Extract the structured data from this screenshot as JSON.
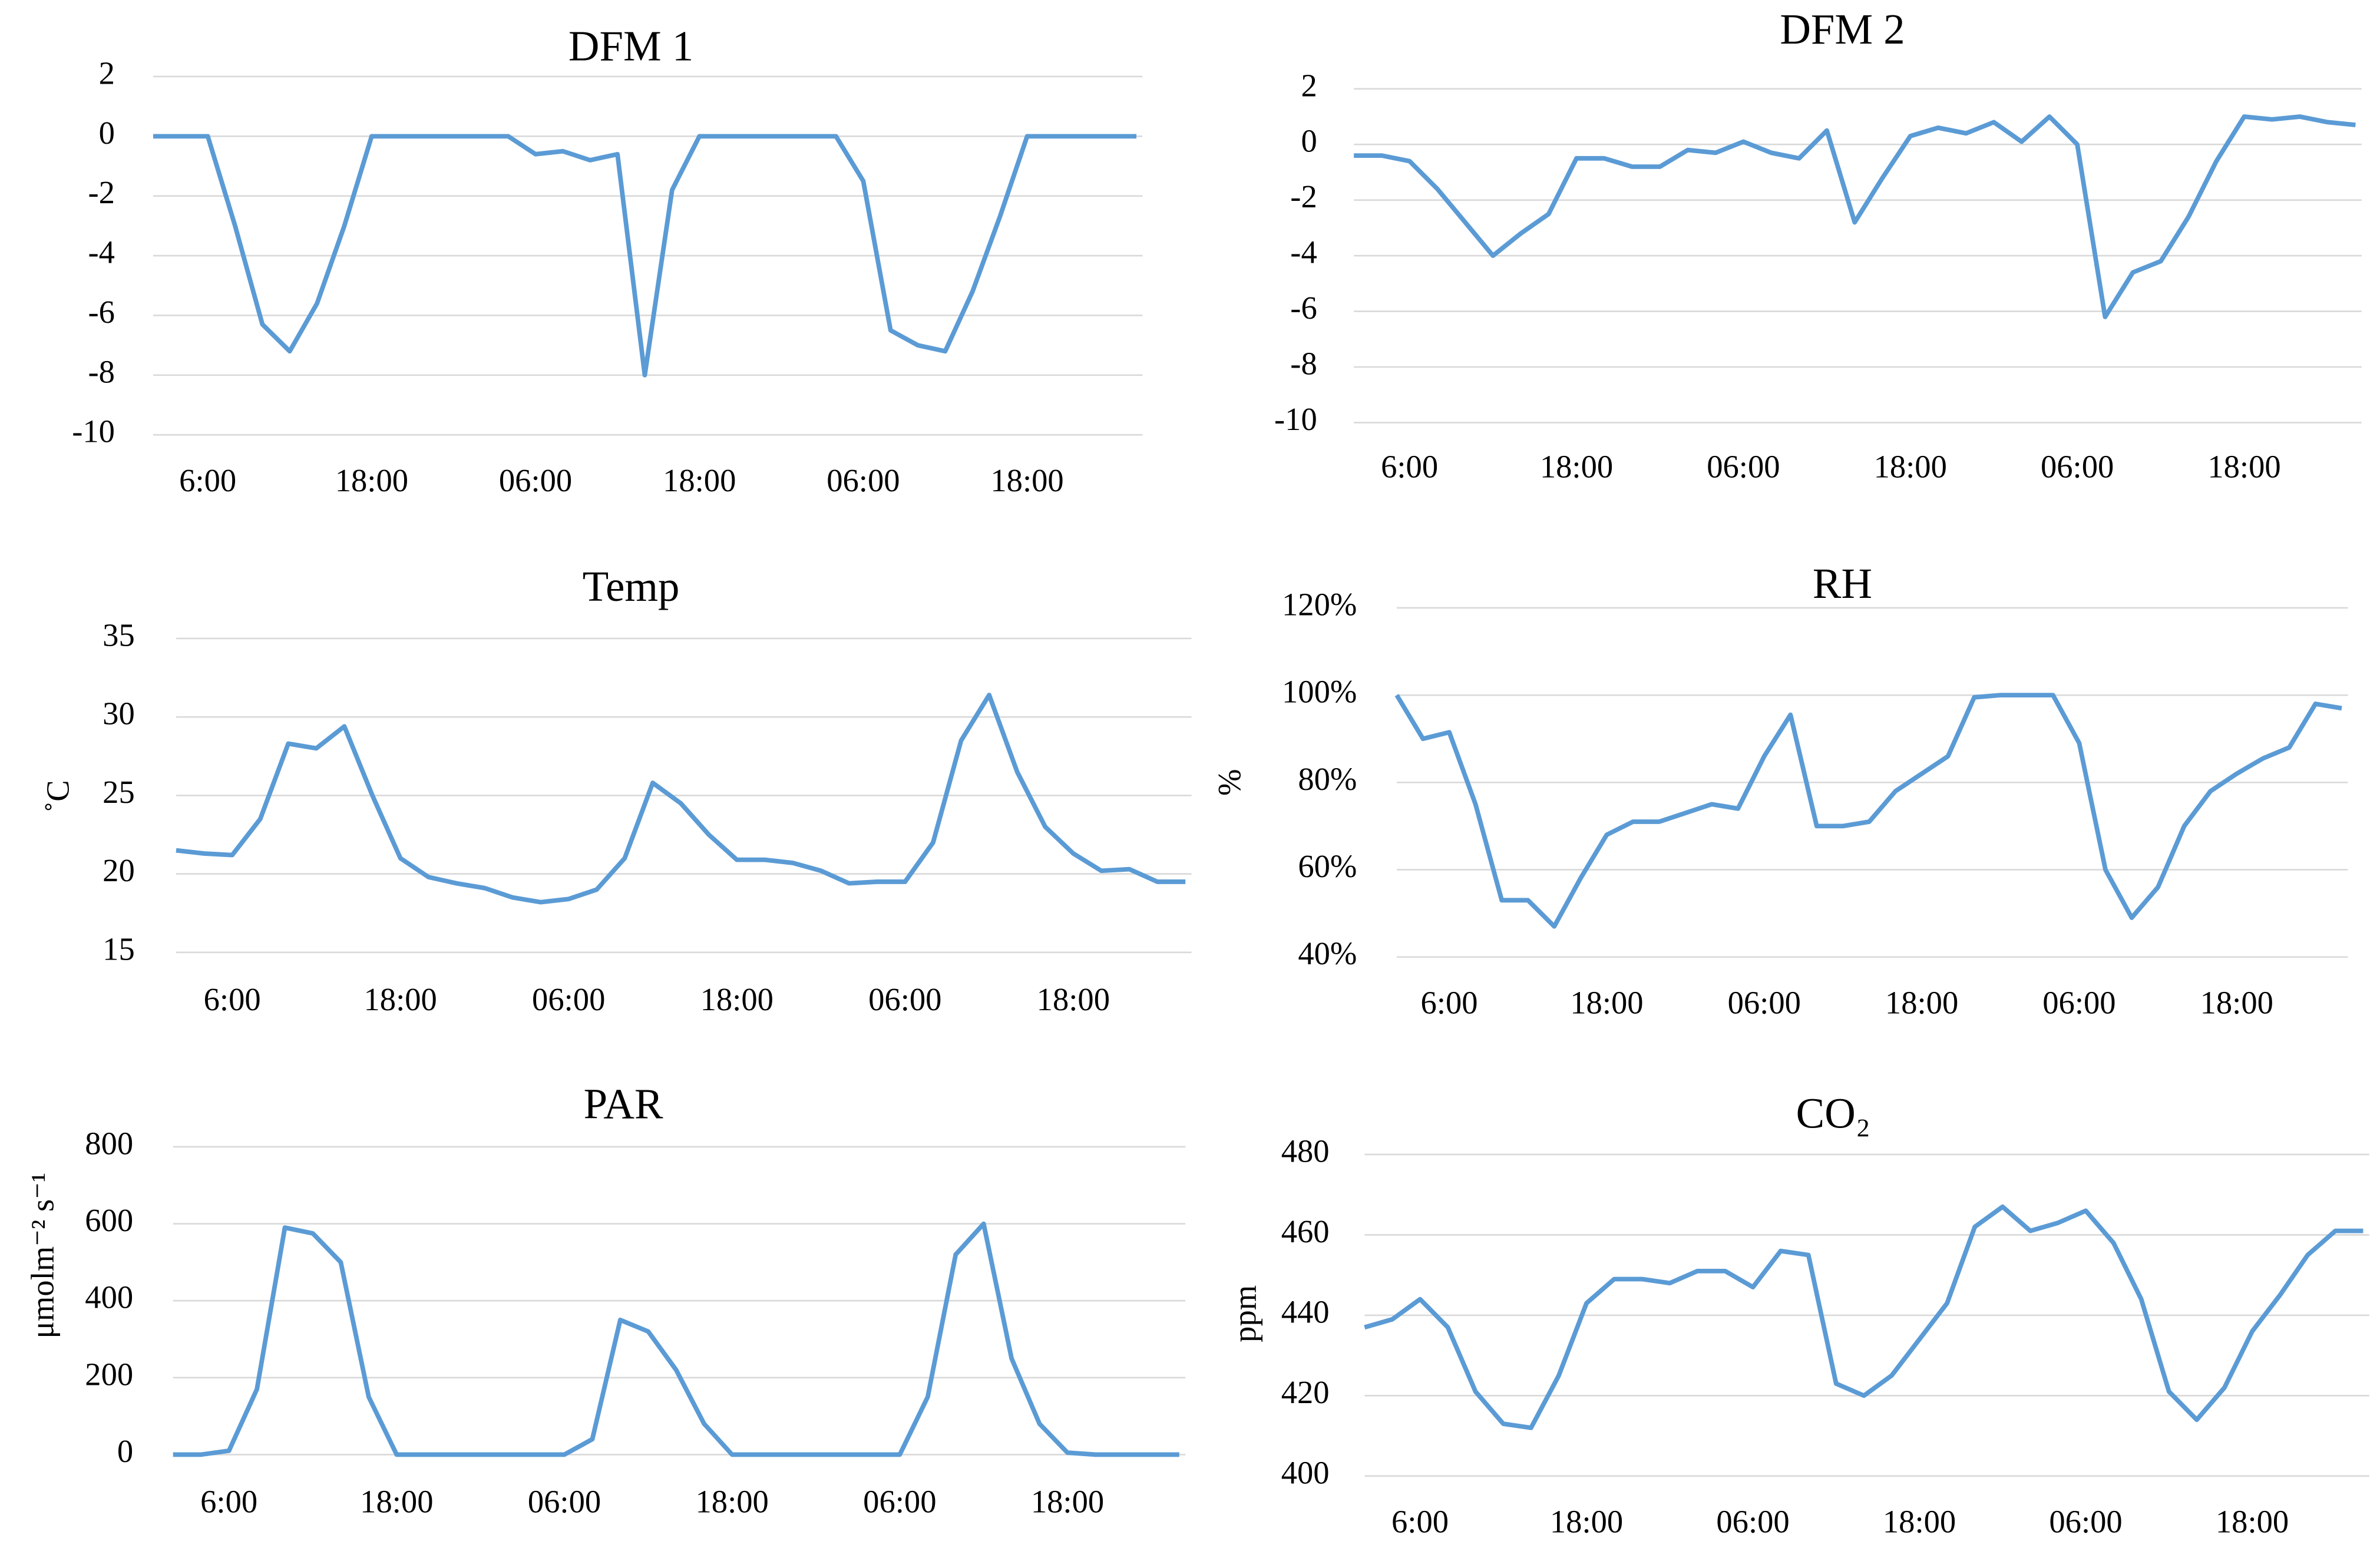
{
  "chart_data": [
    {
      "type": "line",
      "title": "DFM 1",
      "color": "#5b9bd5",
      "grid": true,
      "categories": [
        null,
        null,
        "6:00",
        null,
        null,
        null,
        null,
        null,
        "18:00",
        null,
        null,
        null,
        null,
        null,
        "06:00",
        null,
        null,
        null,
        null,
        null,
        "18:00",
        null,
        null,
        null,
        null,
        null,
        "06:00",
        null,
        null,
        null,
        null,
        null,
        "18:00",
        null,
        null,
        null,
        null
      ],
      "values": [
        0,
        0,
        0,
        -3,
        -6.3,
        -7.2,
        -5.6,
        -3,
        0,
        0,
        0,
        0,
        0,
        0,
        -0.6,
        -0.5,
        -0.8,
        -0.6,
        -8,
        -1.8,
        0,
        0,
        0,
        0,
        0,
        0,
        -1.5,
        -6.5,
        -7,
        -7.2,
        -5.2,
        -2.7,
        0,
        0,
        0,
        0,
        0
      ],
      "ylim": [
        -10,
        2
      ],
      "yticks": [
        -10,
        -8,
        -6,
        -4,
        -2,
        0,
        2
      ]
    },
    {
      "type": "line",
      "title": "DFM 2",
      "color": "#5b9bd5",
      "grid": true,
      "categories": [
        null,
        null,
        "6:00",
        null,
        null,
        null,
        null,
        null,
        "18:00",
        null,
        null,
        null,
        null,
        null,
        "06:00",
        null,
        null,
        null,
        null,
        null,
        "18:00",
        null,
        null,
        null,
        null,
        null,
        "06:00",
        null,
        null,
        null,
        null,
        null,
        "18:00",
        null,
        null,
        null,
        null
      ],
      "values": [
        -0.4,
        -0.4,
        -0.6,
        -1.6,
        -2.8,
        -4,
        -3.2,
        -2.5,
        -0.5,
        -0.5,
        -0.8,
        -0.8,
        -0.2,
        -0.3,
        0.1,
        -0.3,
        -0.5,
        0.5,
        -2.8,
        -1.2,
        0.3,
        0.6,
        0.4,
        0.8,
        0.1,
        1,
        0,
        -6.2,
        -4.6,
        -4.2,
        -2.6,
        -0.6,
        1,
        0.9,
        1,
        0.8,
        0.7
      ],
      "ylim": [
        -10,
        2
      ],
      "yticks": [
        -10,
        -8,
        -6,
        -4,
        -2,
        0,
        2
      ]
    },
    {
      "type": "line",
      "title": "Temp",
      "ylabel": "˚C",
      "color": "#5b9bd5",
      "grid": true,
      "categories": [
        null,
        null,
        "6:00",
        null,
        null,
        null,
        null,
        null,
        "18:00",
        null,
        null,
        null,
        null,
        null,
        "06:00",
        null,
        null,
        null,
        null,
        null,
        "18:00",
        null,
        null,
        null,
        null,
        null,
        "06:00",
        null,
        null,
        null,
        null,
        null,
        "18:00",
        null,
        null,
        null,
        null
      ],
      "values": [
        21.5,
        21.3,
        21.2,
        23.5,
        28.3,
        28,
        29.4,
        25,
        21,
        19.8,
        19.4,
        19.1,
        18.5,
        18.2,
        18.4,
        19,
        21,
        25.8,
        24.5,
        22.5,
        20.9,
        20.9,
        20.7,
        20.2,
        19.4,
        19.5,
        19.5,
        22,
        28.5,
        31.4,
        26.5,
        23,
        21.3,
        20.2,
        20.3,
        19.5,
        19.5
      ],
      "ylim": [
        15,
        35
      ],
      "yticks": [
        15,
        20,
        25,
        30,
        35
      ]
    },
    {
      "type": "line",
      "title": "RH",
      "ylabel": "%",
      "color": "#5b9bd5",
      "grid": true,
      "categories": [
        null,
        null,
        "6:00",
        null,
        null,
        null,
        null,
        null,
        "18:00",
        null,
        null,
        null,
        null,
        null,
        "06:00",
        null,
        null,
        null,
        null,
        null,
        "18:00",
        null,
        null,
        null,
        null,
        null,
        "06:00",
        null,
        null,
        null,
        null,
        null,
        "18:00",
        null,
        null,
        null,
        null
      ],
      "values": [
        100,
        90,
        91.5,
        75,
        53,
        53,
        47,
        58,
        68,
        71,
        71,
        73,
        75,
        74,
        86,
        95.5,
        70,
        70,
        71,
        78,
        82,
        86,
        99.5,
        100,
        100,
        100,
        89,
        60,
        49,
        56,
        70,
        78,
        82,
        85.5,
        88,
        98,
        97
      ],
      "ylim": [
        40,
        120
      ],
      "yticks": [
        {
          "value": 40,
          "label": "40%"
        },
        {
          "value": 60,
          "label": "60%"
        },
        {
          "value": 80,
          "label": "80%"
        },
        {
          "value": 100,
          "label": "100%"
        },
        {
          "value": 120,
          "label": "120%"
        }
      ]
    },
    {
      "type": "line",
      "title": "PAR",
      "ylabel": "μmolm⁻² s⁻¹",
      "color": "#5b9bd5",
      "grid": true,
      "categories": [
        null,
        null,
        "6:00",
        null,
        null,
        null,
        null,
        null,
        "18:00",
        null,
        null,
        null,
        null,
        null,
        "06:00",
        null,
        null,
        null,
        null,
        null,
        "18:00",
        null,
        null,
        null,
        null,
        null,
        "06:00",
        null,
        null,
        null,
        null,
        null,
        "18:00",
        null,
        null,
        null,
        null
      ],
      "values": [
        0,
        0,
        10,
        170,
        590,
        575,
        500,
        150,
        0,
        0,
        0,
        0,
        0,
        0,
        0,
        40,
        350,
        320,
        220,
        80,
        0,
        0,
        0,
        0,
        0,
        0,
        0,
        150,
        520,
        600,
        250,
        80,
        5,
        0,
        0,
        0,
        0
      ],
      "ylim": [
        0,
        800
      ],
      "yticks": [
        0,
        200,
        400,
        600,
        800
      ]
    },
    {
      "type": "line",
      "title": "CO₂",
      "ylabel": "ppm",
      "color": "#5b9bd5",
      "grid": true,
      "categories": [
        null,
        null,
        "6:00",
        null,
        null,
        null,
        null,
        null,
        "18:00",
        null,
        null,
        null,
        null,
        null,
        "06:00",
        null,
        null,
        null,
        null,
        null,
        "18:00",
        null,
        null,
        null,
        null,
        null,
        "06:00",
        null,
        null,
        null,
        null,
        null,
        "18:00",
        null,
        null,
        null,
        null
      ],
      "values": [
        437,
        439,
        444,
        437,
        421,
        413,
        412,
        425,
        443,
        449,
        449,
        448,
        451,
        451,
        447,
        456,
        455,
        423,
        420,
        425,
        434,
        443,
        462,
        467,
        461,
        463,
        466,
        458,
        444,
        421,
        414,
        422,
        436,
        445,
        455,
        461,
        461
      ],
      "ylim": [
        400,
        480
      ],
      "yticks": [
        400,
        420,
        440,
        460,
        480
      ]
    }
  ]
}
